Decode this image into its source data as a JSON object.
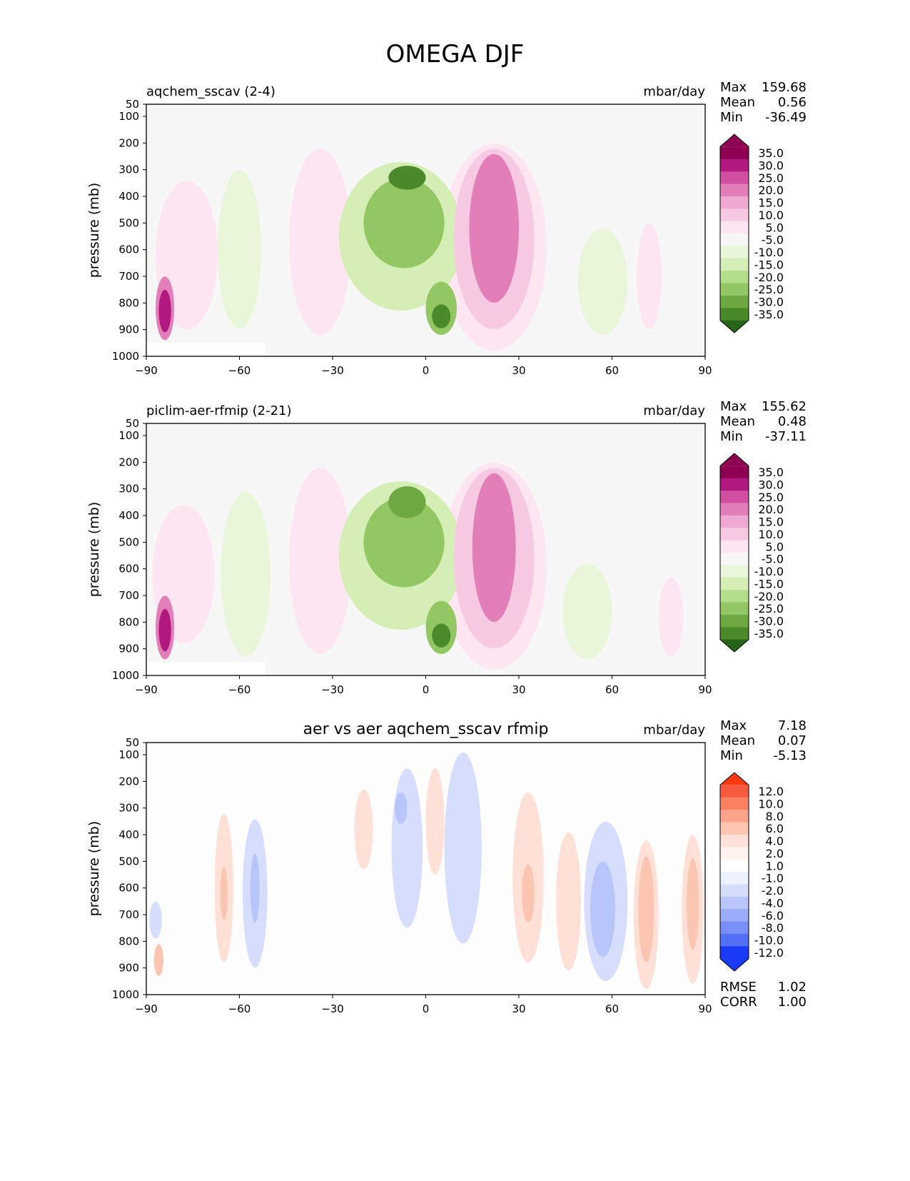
{
  "figure_title": "OMEGA DJF",
  "colors": {
    "pos_levels": [
      "#fde5f1",
      "#f7c9e3",
      "#efa8d2",
      "#e37fb8",
      "#d04ea0",
      "#b2197f",
      "#8e0152"
    ],
    "neg_levels": [
      "#eaf6d9",
      "#d4eeb6",
      "#b3de8a",
      "#92c764",
      "#6da840",
      "#4b8a2a",
      "#276419"
    ],
    "diff_pos": [
      "#fee0d6",
      "#fcc5b2",
      "#fca48a",
      "#fb8163",
      "#f65a3f",
      "#ff3a10"
    ],
    "diff_neg": [
      "#d7defd",
      "#b8c5fb",
      "#9aabf9",
      "#7a8ef7",
      "#5470f6",
      "#1b3af5"
    ],
    "background": "#f7f7f7",
    "diff_background": "#fdfdfd"
  },
  "chart_data": [
    {
      "type": "contour",
      "title": "aqchem_sscav (2-4)",
      "units": "mbar/day",
      "xlabel": "",
      "ylabel": "pressure (mb)",
      "x_ticks": [
        "−90",
        "−60",
        "−30",
        "0",
        "30",
        "60",
        "90"
      ],
      "y_ticks": [
        "50",
        "100",
        "200",
        "300",
        "400",
        "500",
        "600",
        "700",
        "800",
        "900",
        "1000"
      ],
      "xlim": [
        -90,
        90
      ],
      "ylim": [
        1000,
        50
      ],
      "stats": [
        {
          "label": "Max",
          "value": "159.68"
        },
        {
          "label": "Mean",
          "value": "0.56"
        },
        {
          "label": "Min",
          "value": "-36.49"
        }
      ],
      "colorbar_labels": [
        "35.0",
        "30.0",
        "25.0",
        "20.0",
        "15.0",
        "10.0",
        "5.0",
        "-5.0",
        "-10.0",
        "-15.0",
        "-20.0",
        "-25.0",
        "-30.0",
        "-35.0"
      ],
      "colorbar_scheme": "pink-green",
      "features": [
        {
          "lat": -6,
          "p": 330,
          "level": -6,
          "w": 6,
          "h": 90
        },
        {
          "lat": -7,
          "p": 500,
          "level": -4,
          "w": 13,
          "h": 340
        },
        {
          "lat": -8,
          "p": 550,
          "level": -2,
          "w": 20,
          "h": 560
        },
        {
          "lat": 5,
          "p": 850,
          "level": -6,
          "w": 3,
          "h": 90
        },
        {
          "lat": 5,
          "p": 820,
          "level": -4,
          "w": 5,
          "h": 200
        },
        {
          "lat": 22,
          "p": 520,
          "level": 4,
          "w": 8,
          "h": 560
        },
        {
          "lat": 22,
          "p": 560,
          "level": 2,
          "w": 13,
          "h": 680
        },
        {
          "lat": 22,
          "p": 590,
          "level": 1,
          "w": 17,
          "h": 780
        },
        {
          "lat": -34,
          "p": 570,
          "level": 1,
          "w": 10,
          "h": 700
        },
        {
          "lat": -60,
          "p": 600,
          "level": -1,
          "w": 7,
          "h": 600
        },
        {
          "lat": -77,
          "p": 620,
          "level": 1,
          "w": 10,
          "h": 560
        },
        {
          "lat": 57,
          "p": 720,
          "level": -1,
          "w": 8,
          "h": 400
        },
        {
          "lat": 72,
          "p": 700,
          "level": 1,
          "w": 4,
          "h": 400
        },
        {
          "lat": -84,
          "p": 830,
          "level": 6,
          "w": 2,
          "h": 160
        },
        {
          "lat": -84,
          "p": 820,
          "level": 4,
          "w": 3,
          "h": 240
        }
      ]
    },
    {
      "type": "contour",
      "title": "piclim-aer-rfmip (2-21)",
      "units": "mbar/day",
      "xlabel": "",
      "ylabel": "pressure (mb)",
      "x_ticks": [
        "−90",
        "−60",
        "−30",
        "0",
        "30",
        "60",
        "90"
      ],
      "y_ticks": [
        "50",
        "100",
        "200",
        "300",
        "400",
        "500",
        "600",
        "700",
        "800",
        "900",
        "1000"
      ],
      "xlim": [
        -90,
        90
      ],
      "ylim": [
        1000,
        50
      ],
      "stats": [
        {
          "label": "Max",
          "value": "155.62"
        },
        {
          "label": "Mean",
          "value": "0.48"
        },
        {
          "label": "Min",
          "value": "-37.11"
        }
      ],
      "colorbar_labels": [
        "35.0",
        "30.0",
        "25.0",
        "20.0",
        "15.0",
        "10.0",
        "5.0",
        "-5.0",
        "-10.0",
        "-15.0",
        "-20.0",
        "-25.0",
        "-30.0",
        "-35.0"
      ],
      "colorbar_scheme": "pink-green",
      "features": [
        {
          "lat": -6,
          "p": 350,
          "level": -5,
          "w": 6,
          "h": 120
        },
        {
          "lat": -7,
          "p": 500,
          "level": -4,
          "w": 13,
          "h": 340
        },
        {
          "lat": -8,
          "p": 550,
          "level": -2,
          "w": 20,
          "h": 560
        },
        {
          "lat": 5,
          "p": 850,
          "level": -6,
          "w": 3,
          "h": 90
        },
        {
          "lat": 5,
          "p": 820,
          "level": -4,
          "w": 5,
          "h": 200
        },
        {
          "lat": 22,
          "p": 520,
          "level": 4,
          "w": 7,
          "h": 560
        },
        {
          "lat": 22,
          "p": 560,
          "level": 2,
          "w": 13,
          "h": 680
        },
        {
          "lat": 22,
          "p": 590,
          "level": 1,
          "w": 17,
          "h": 780
        },
        {
          "lat": -34,
          "p": 570,
          "level": 1,
          "w": 10,
          "h": 700
        },
        {
          "lat": -58,
          "p": 620,
          "level": -1,
          "w": 8,
          "h": 620
        },
        {
          "lat": -78,
          "p": 620,
          "level": 1,
          "w": 10,
          "h": 520
        },
        {
          "lat": 52,
          "p": 760,
          "level": -1,
          "w": 8,
          "h": 360
        },
        {
          "lat": 79,
          "p": 780,
          "level": 1,
          "w": 4,
          "h": 300
        },
        {
          "lat": -84,
          "p": 830,
          "level": 6,
          "w": 2,
          "h": 160
        },
        {
          "lat": -84,
          "p": 820,
          "level": 4,
          "w": 3,
          "h": 240
        }
      ]
    },
    {
      "type": "contour",
      "title": "aer vs aer aqchem_sscav rfmip",
      "units": "mbar/day",
      "xlabel": "",
      "ylabel": "pressure (mb)",
      "x_ticks": [
        "−90",
        "−60",
        "−30",
        "0",
        "30",
        "60",
        "90"
      ],
      "y_ticks": [
        "50",
        "100",
        "200",
        "300",
        "400",
        "500",
        "600",
        "700",
        "800",
        "900",
        "1000"
      ],
      "xlim": [
        -90,
        90
      ],
      "ylim": [
        1000,
        50
      ],
      "stats": [
        {
          "label": "Max",
          "value": "7.18"
        },
        {
          "label": "Mean",
          "value": "0.07"
        },
        {
          "label": "Min",
          "value": "-5.13"
        }
      ],
      "bottom_stats": [
        {
          "label": "RMSE",
          "value": "1.02"
        },
        {
          "label": "CORR",
          "value": "1.00"
        }
      ],
      "colorbar_labels": [
        "12.0",
        "10.0",
        "8.0",
        "6.0",
        "4.0",
        "2.0",
        "1.0",
        "-1.0",
        "-2.0",
        "-4.0",
        "-6.0",
        "-8.0",
        "-10.0",
        "-12.0"
      ],
      "colorbar_scheme": "red-blue",
      "features": [
        {
          "lat": -65,
          "p": 600,
          "level": 1,
          "w": 3,
          "h": 560
        },
        {
          "lat": -65,
          "p": 620,
          "level": 2,
          "w": 1.2,
          "h": 200
        },
        {
          "lat": -55,
          "p": 620,
          "level": -1,
          "w": 4,
          "h": 560
        },
        {
          "lat": -55,
          "p": 600,
          "level": -2,
          "w": 1.5,
          "h": 260
        },
        {
          "lat": -20,
          "p": 380,
          "level": 1,
          "w": 3,
          "h": 300
        },
        {
          "lat": -8,
          "p": 300,
          "level": -2,
          "w": 2,
          "h": 120
        },
        {
          "lat": -6,
          "p": 450,
          "level": -1,
          "w": 5,
          "h": 600
        },
        {
          "lat": 3,
          "p": 350,
          "level": 1,
          "w": 3,
          "h": 400
        },
        {
          "lat": 12,
          "p": 450,
          "level": -1,
          "w": 6,
          "h": 720
        },
        {
          "lat": 33,
          "p": 560,
          "level": 1,
          "w": 5,
          "h": 640
        },
        {
          "lat": 33,
          "p": 620,
          "level": 2,
          "w": 2,
          "h": 220
        },
        {
          "lat": 46,
          "p": 650,
          "level": 1,
          "w": 4,
          "h": 520
        },
        {
          "lat": 58,
          "p": 650,
          "level": -1,
          "w": 7,
          "h": 600
        },
        {
          "lat": 57,
          "p": 680,
          "level": -2,
          "w": 4,
          "h": 360
        },
        {
          "lat": 71,
          "p": 700,
          "level": 1,
          "w": 4,
          "h": 560
        },
        {
          "lat": 71,
          "p": 680,
          "level": 2,
          "w": 2.5,
          "h": 400
        },
        {
          "lat": 86,
          "p": 680,
          "level": 1,
          "w": 3.5,
          "h": 560
        },
        {
          "lat": 86,
          "p": 660,
          "level": 2,
          "w": 2,
          "h": 340
        },
        {
          "lat": -86,
          "p": 870,
          "level": 2,
          "w": 1.5,
          "h": 120
        },
        {
          "lat": -87,
          "p": 720,
          "level": -1,
          "w": 2,
          "h": 140
        }
      ]
    }
  ]
}
